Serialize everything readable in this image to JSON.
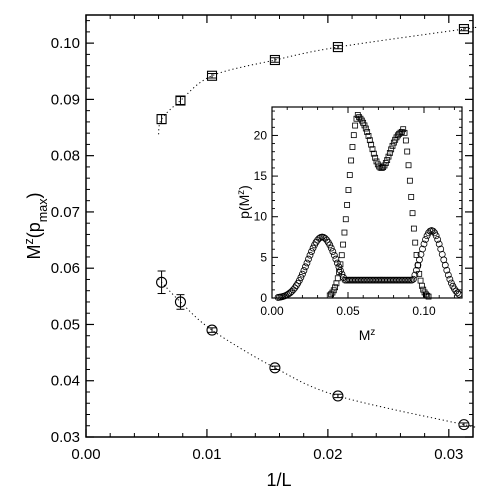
{
  "chart_data": [
    {
      "type": "scatter",
      "xlabel": "1/L",
      "ylabel": "M^z(p_max)",
      "xlim": [
        0.0,
        0.032
      ],
      "ylim": [
        0.03,
        0.105
      ],
      "xticks": [
        "0.00",
        "0.01",
        "0.02",
        "0.03"
      ],
      "yticks": [
        "0.03",
        "0.04",
        "0.05",
        "0.06",
        "0.07",
        "0.08",
        "0.09",
        "0.10"
      ],
      "grid": false,
      "series": [
        {
          "marker": "square",
          "points": [
            {
              "x": 0.00625,
              "y": 0.0865,
              "err": 0.0008
            },
            {
              "x": 0.00781,
              "y": 0.0898,
              "err": 0.0007
            },
            {
              "x": 0.01042,
              "y": 0.0942,
              "err": 0.0004
            },
            {
              "x": 0.01562,
              "y": 0.097,
              "err": 0.0004
            },
            {
              "x": 0.02083,
              "y": 0.0993,
              "err": 0.0003
            },
            {
              "x": 0.03125,
              "y": 0.1025,
              "err": 0.0003
            }
          ],
          "fit": {
            "style": "dotted",
            "x_start": 0.006,
            "x_end": 0.032,
            "y_start": 0.0838
          }
        },
        {
          "marker": "circle",
          "points": [
            {
              "x": 0.00625,
              "y": 0.0575,
              "err": 0.002
            },
            {
              "x": 0.00781,
              "y": 0.054,
              "err": 0.0013
            },
            {
              "x": 0.01042,
              "y": 0.049,
              "err": 0.0004
            },
            {
              "x": 0.01562,
              "y": 0.0423,
              "err": 0.0003
            },
            {
              "x": 0.02083,
              "y": 0.0373,
              "err": 0.0003
            },
            {
              "x": 0.03125,
              "y": 0.0322,
              "err": 0.0003
            }
          ],
          "fit": {
            "style": "dotted",
            "x_start": 0.006,
            "x_end": 0.032
          }
        }
      ]
    },
    {
      "type": "scatter",
      "placement": "inset-right",
      "xlabel": "M^z",
      "ylabel": "p(M^z)",
      "xlim": [
        0.0,
        0.125
      ],
      "ylim": [
        0,
        23.5
      ],
      "xticks": [
        "0.00",
        "0.05",
        "0.10"
      ],
      "yticks": [
        "0",
        "5",
        "10",
        "15",
        "20"
      ],
      "series": [
        {
          "marker": "square",
          "shape": {
            "peaks": [
              {
                "x": 0.057,
                "y": 22.6,
                "sigma": 0.0065
              },
              {
                "x": 0.086,
                "y": 20.8,
                "sigma": 0.0055
              }
            ],
            "dip": {
              "x": 0.072,
              "y": 16.0
            },
            "x_range": [
              0.038,
              0.103
            ],
            "n_points": 75
          }
        },
        {
          "marker": "circle",
          "shape": {
            "peaks": [
              {
                "x": 0.033,
                "y": 7.5,
                "sigma": 0.0095
              },
              {
                "x": 0.105,
                "y": 8.3,
                "sigma": 0.0075
              }
            ],
            "plateau": 2.2,
            "x_range": [
              0.004,
              0.123
            ],
            "n_points": 120
          }
        }
      ]
    }
  ]
}
